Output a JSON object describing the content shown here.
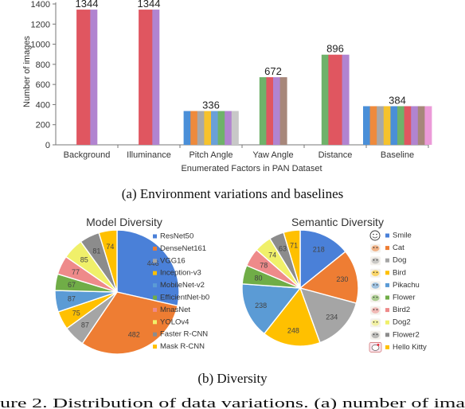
{
  "captions": {
    "a": "(a) Environment variations and baselines",
    "b": "(b) Diversity",
    "figure": "ure 2. Distribution of data variations. (a) number of ima"
  },
  "chart_data": [
    {
      "type": "bar",
      "title": "",
      "xlabel": "Enumerated Factors in PAN Dataset",
      "ylabel": "Number of images",
      "ylim": [
        0,
        1400
      ],
      "yticks": [
        0,
        200,
        400,
        600,
        800,
        1000,
        1200,
        1400
      ],
      "grid": false,
      "categories": [
        {
          "label": "Background",
          "total": "1344",
          "values": [
            1344,
            1344,
            1344
          ],
          "colors": [
            "#e05660",
            "#e05660",
            "#b184d0"
          ]
        },
        {
          "label": "Illuminance",
          "total": "1344",
          "values": [
            1344,
            1344,
            1344
          ],
          "colors": [
            "#e05660",
            "#e05660",
            "#b184d0"
          ]
        },
        {
          "label": "Pitch Angle",
          "total": "336",
          "values": [
            336,
            336,
            336,
            336,
            336,
            336,
            336,
            336
          ],
          "colors": [
            "#4a8fd8",
            "#ee8a3c",
            "#a8a8a8",
            "#f6c22c",
            "#6aa0d8",
            "#6fb26a",
            "#b184d0",
            "#c8c8c8"
          ]
        },
        {
          "label": "Yaw Angle",
          "total": "672",
          "values": [
            672,
            672,
            672,
            672
          ],
          "colors": [
            "#6fb26a",
            "#e05660",
            "#b184d0",
            "#a7877a"
          ]
        },
        {
          "label": "Distance",
          "total": "896",
          "values": [
            896,
            896,
            896,
            896
          ],
          "colors": [
            "#6fb26a",
            "#e05660",
            "#e05660",
            "#b184d0"
          ]
        },
        {
          "label": "Baseline",
          "total": "384",
          "values": [
            384,
            384,
            384,
            384,
            384,
            384,
            384,
            384,
            384,
            384
          ],
          "colors": [
            "#4a8fd8",
            "#ee8a3c",
            "#a8a8a8",
            "#f6c22c",
            "#4a8fd8",
            "#6fb26a",
            "#e05660",
            "#b184d0",
            "#a7877a",
            "#ec9ad8"
          ]
        }
      ]
    },
    {
      "type": "pie",
      "title": "Model Diversity",
      "legend": "right",
      "slices": [
        {
          "name": "ResNet50",
          "value": 446,
          "label": "446",
          "color": "#4a80d8"
        },
        {
          "name": "DenseNet161",
          "value": 482,
          "label": "482",
          "color": "#ee7d33"
        },
        {
          "name": "VGG16",
          "value": 87,
          "label": "87",
          "color": "#a5a5a5"
        },
        {
          "name": "Inception-v3",
          "value": 75,
          "label": "75",
          "color": "#ffc000"
        },
        {
          "name": "MobileNet-v2",
          "value": 87,
          "label": "87",
          "color": "#5b9bd5"
        },
        {
          "name": "EfficientNet-b0",
          "value": 67,
          "label": "67",
          "color": "#70ad47"
        },
        {
          "name": "MnasNet",
          "value": 77,
          "label": "77",
          "color": "#ee8a8a"
        },
        {
          "name": "YOLOv4",
          "value": 85,
          "label": "85",
          "color": "#f0f06a"
        },
        {
          "name": "Faster R-CNN",
          "value": 81,
          "label": "81",
          "color": "#8c8c8c"
        },
        {
          "name": "Mask R-CNN",
          "value": 74,
          "label": "74",
          "color": "#ffc000"
        }
      ]
    },
    {
      "type": "pie",
      "title": "Semantic Diversity",
      "legend": "right",
      "slices": [
        {
          "name": "Smile",
          "value": 218,
          "label": "218",
          "color": "#4a80d8",
          "icon": "smile-icon"
        },
        {
          "name": "Cat",
          "value": 230,
          "label": "230",
          "color": "#ee7d33",
          "icon": "cat-icon"
        },
        {
          "name": "Dog",
          "value": 234,
          "label": "234",
          "color": "#a5a5a5",
          "icon": "dog-icon"
        },
        {
          "name": "Bird",
          "value": 248,
          "label": "248",
          "color": "#ffc000",
          "icon": "bird-icon"
        },
        {
          "name": "Pikachu",
          "value": 238,
          "label": "238",
          "color": "#5b9bd5",
          "icon": "pikachu-icon"
        },
        {
          "name": "Flower",
          "value": 80,
          "label": "80",
          "color": "#70ad47",
          "icon": "flower-icon"
        },
        {
          "name": "Bird2",
          "value": 78,
          "label": "78",
          "color": "#ee8a8a",
          "icon": "bird2-icon"
        },
        {
          "name": "Dog2",
          "value": 74,
          "label": "74",
          "color": "#f0f06a",
          "icon": "dog2-icon"
        },
        {
          "name": "Flower2",
          "value": 63,
          "label": "63",
          "color": "#8c8c8c",
          "icon": "flower2-icon"
        },
        {
          "name": "Hello Kitty",
          "value": 71,
          "label": "71",
          "color": "#ffc000",
          "icon": "hello-kitty-icon"
        }
      ]
    }
  ]
}
